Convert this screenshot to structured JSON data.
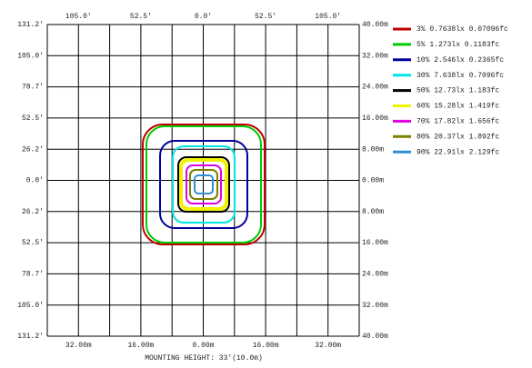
{
  "axes": {
    "top_labels": [
      "105.0'",
      "52.5'",
      "0.0'",
      "52.5'",
      "105.0'"
    ],
    "bottom_labels": [
      "32.00m",
      "16.00m",
      "0.00m",
      "16.00m",
      "32.00m"
    ],
    "left_labels": [
      "131.2'",
      "105.0'",
      "78.7'",
      "52.5'",
      "26.2'",
      "0.0'",
      "26.2'",
      "52.5'",
      "78.7'",
      "105.0'",
      "131.2'"
    ],
    "right_labels": [
      "40.00m",
      "32.00m",
      "24.00m",
      "16.00m",
      "8.00m",
      "0.00m",
      "8.00m",
      "16.00m",
      "24.00m",
      "32.00m",
      "40.00m"
    ]
  },
  "legend": [
    {
      "label": "3% 0.7638lx 0.07096fc",
      "color": "#c00000"
    },
    {
      "label": "5% 1.273lx 0.1183fc",
      "color": "#00cc00"
    },
    {
      "label": "10% 2.546lx 0.2365fc",
      "color": "#000099"
    },
    {
      "label": "30% 7.638lx 0.7096fc",
      "color": "#00e5e5"
    },
    {
      "label": "50% 12.73lx 1.183fc",
      "color": "#000000"
    },
    {
      "label": "60% 15.28lx 1.419fc",
      "color": "#f2f200"
    },
    {
      "label": "70% 17.82lx 1.656fc",
      "color": "#e000e0"
    },
    {
      "label": "80% 20.37lx 1.892fc",
      "color": "#7f7f00"
    },
    {
      "label": "90% 22.91lx 2.129fc",
      "color": "#2f8fd0"
    }
  ],
  "footer": "MOUNTING HEIGHT: 33'(10.0m)"
}
